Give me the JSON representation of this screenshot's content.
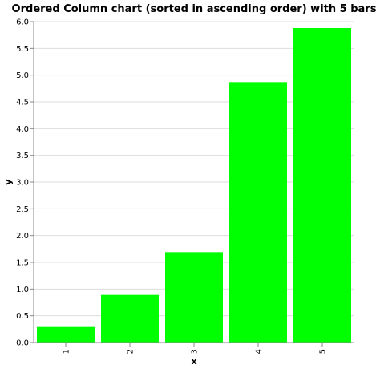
{
  "chart_data": {
    "type": "bar",
    "title": "Ordered Column chart (sorted in ascending order) with 5 bars",
    "xlabel": "x",
    "ylabel": "y",
    "categories": [
      "1",
      "2",
      "3",
      "4",
      "5"
    ],
    "values": [
      0.29,
      0.89,
      1.69,
      4.87,
      5.88
    ],
    "ylim": [
      0,
      6
    ],
    "yticks": [
      "0.0",
      "0.5",
      "1.0",
      "1.5",
      "2.0",
      "2.5",
      "3.0",
      "3.5",
      "4.0",
      "4.5",
      "5.0",
      "5.5",
      "6.0"
    ],
    "grid": true,
    "bar_color": "#00ff00"
  }
}
